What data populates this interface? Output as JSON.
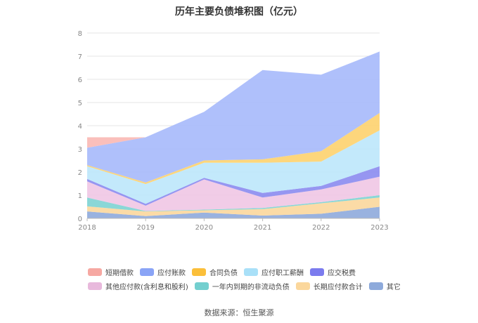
{
  "chart_data": {
    "type": "area",
    "stacked": true,
    "title": "历年主要负债堆积图（亿元）",
    "categories": [
      "2018",
      "2019",
      "2020",
      "2021",
      "2022",
      "2023"
    ],
    "ylim": [
      0,
      8
    ],
    "yticks": [
      "0",
      "1",
      "2",
      "3",
      "4",
      "5",
      "6",
      "7",
      "8"
    ],
    "grid": true,
    "legend_position": "bottom",
    "series": [
      {
        "name": "其它",
        "color": "#8eaadb",
        "values": [
          0.3,
          0.1,
          0.25,
          0.12,
          0.2,
          0.5
        ]
      },
      {
        "name": "长期应付款合计",
        "color": "#fbd79c",
        "values": [
          0.22,
          0.2,
          0.1,
          0.28,
          0.45,
          0.4
        ]
      },
      {
        "name": "一年内到期的非流动负债",
        "color": "#7dd3d3",
        "values": [
          0.38,
          0.02,
          0.03,
          0.05,
          0.05,
          0.1
        ]
      },
      {
        "name": "其他应付款(含利息和股利)",
        "color": "#f0c6e4",
        "values": [
          0.7,
          0.23,
          1.3,
          0.45,
          0.55,
          0.8
        ]
      },
      {
        "name": "应交税费",
        "color": "#8b8bf0",
        "values": [
          0.1,
          0.08,
          0.07,
          0.2,
          0.15,
          0.45
        ]
      },
      {
        "name": "应付职工薪酬",
        "color": "#bde7fb",
        "values": [
          0.55,
          0.85,
          0.65,
          1.3,
          1.05,
          1.55
        ]
      },
      {
        "name": "合同负债",
        "color": "#fdd26e",
        "values": [
          0.05,
          0.07,
          0.1,
          0.15,
          0.45,
          0.75
        ]
      },
      {
        "name": "应付账款",
        "color": "#a6b9fb",
        "values": [
          0.75,
          1.95,
          2.1,
          3.85,
          3.3,
          2.65
        ]
      },
      {
        "name": "短期借款",
        "color": "#f9b8b4",
        "values": [
          0.45,
          0.0,
          0.0,
          0.0,
          0.0,
          0.0
        ]
      }
    ]
  },
  "legend": {
    "row1": [
      {
        "label": "短期借款",
        "color": "#f6a8a2"
      },
      {
        "label": "应付账款",
        "color": "#8aa4f6"
      },
      {
        "label": "合同负债",
        "color": "#fbbf3a"
      },
      {
        "label": "应付职工薪酬",
        "color": "#a9e0f8"
      },
      {
        "label": "应交税费",
        "color": "#7b7bee"
      }
    ],
    "row2": [
      {
        "label": "其他应付款(含利息和股利)",
        "color": "#e8b9dc"
      },
      {
        "label": "一年内到期的非流动负债",
        "color": "#73cfcf"
      },
      {
        "label": "长期应付款合计",
        "color": "#fbd79c"
      },
      {
        "label": "其它",
        "color": "#8eaadb"
      }
    ]
  },
  "source": "数据来源：恒生聚源"
}
